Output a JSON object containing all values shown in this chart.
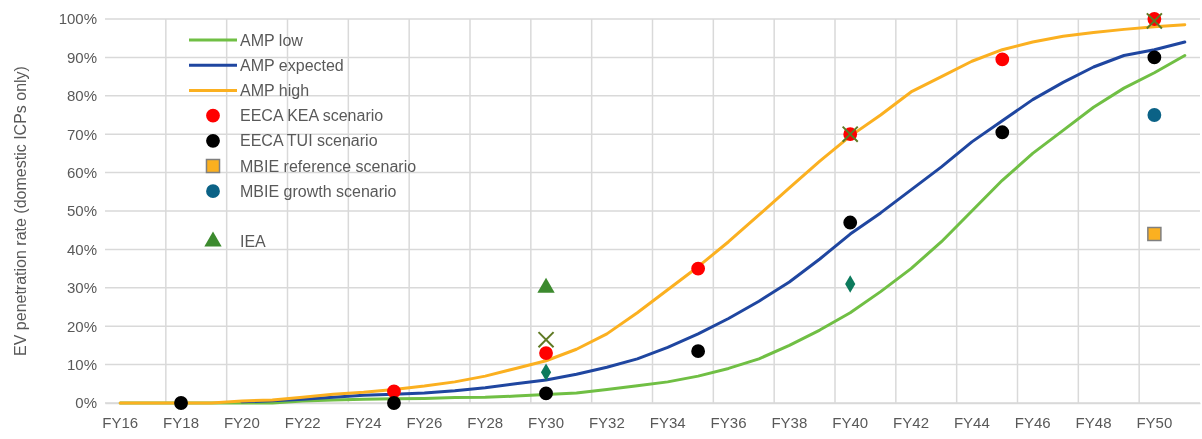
{
  "chart_data": {
    "type": "line",
    "ylabel": "EV penetration rate (domestic ICPs only)",
    "categories": [
      "FY16",
      null,
      "FY18",
      null,
      "FY20",
      null,
      "FY22",
      null,
      "FY24",
      null,
      "FY26",
      null,
      "FY28",
      null,
      "FY30",
      null,
      "FY32",
      null,
      "FY34",
      null,
      "FY36",
      null,
      "FY38",
      null,
      "FY40",
      null,
      "FY42",
      null,
      "FY44",
      null,
      "FY46",
      null,
      "FY48",
      null,
      "FY50",
      null
    ],
    "ylim": [
      0,
      100
    ],
    "yticks": [
      {
        "value": 0,
        "label": "0%"
      },
      {
        "value": 10,
        "label": "10%"
      },
      {
        "value": 20,
        "label": "20%"
      },
      {
        "value": 30,
        "label": "30%"
      },
      {
        "value": 40,
        "label": "40%"
      },
      {
        "value": 50,
        "label": "50%"
      },
      {
        "value": 60,
        "label": "60%"
      },
      {
        "value": 70,
        "label": "70%"
      },
      {
        "value": 80,
        "label": "80%"
      },
      {
        "value": 90,
        "label": "90%"
      },
      {
        "value": 100,
        "label": "100%"
      }
    ],
    "grid": true,
    "legend": "top left",
    "series": [
      {
        "name": "AMP low",
        "marker": "none",
        "color": "#70bf44",
        "values": [
          0,
          0,
          0,
          0,
          0,
          0,
          0.5,
          0.8,
          1,
          1.1,
          1.2,
          1.4,
          1.5,
          1.8,
          2.2,
          2.6,
          3.5,
          4.5,
          5.5,
          7,
          9,
          11.5,
          15,
          19,
          23.5,
          29,
          35,
          42,
          50,
          58,
          65,
          71,
          77,
          82,
          86,
          90.5
        ]
      },
      {
        "name": "AMP expected",
        "marker": "none",
        "color": "#1f46a0",
        "values": [
          null,
          null,
          null,
          null,
          0.3,
          0.6,
          1,
          1.5,
          2,
          2.3,
          2.6,
          3.2,
          4,
          5,
          6,
          7.5,
          9.3,
          11.5,
          14.5,
          18,
          22,
          26.5,
          31.5,
          37.5,
          44,
          49.5,
          55.5,
          61.5,
          68,
          73.5,
          79,
          83.5,
          87.5,
          90.5,
          92,
          94
        ]
      },
      {
        "name": "AMP high",
        "marker": "none",
        "color": "#fbb020",
        "values": [
          0,
          0,
          0,
          0,
          0.5,
          0.8,
          1.5,
          2.3,
          2.8,
          3.5,
          4.4,
          5.5,
          7,
          9,
          11,
          14,
          18,
          23.5,
          29.5,
          35.5,
          42,
          49,
          56,
          63,
          69.5,
          75,
          81,
          85,
          89,
          92,
          94,
          95.5,
          96.5,
          97.3,
          98,
          98.5
        ]
      },
      {
        "name": "EECA KEA scenario",
        "type": "scatter",
        "marker": "circle",
        "color": "#ff0000",
        "values": [
          null,
          null,
          null,
          null,
          null,
          null,
          null,
          null,
          null,
          3,
          null,
          null,
          null,
          null,
          13,
          null,
          null,
          null,
          null,
          35,
          null,
          null,
          null,
          null,
          70,
          null,
          null,
          null,
          null,
          89.5,
          null,
          null,
          null,
          null,
          100,
          null
        ]
      },
      {
        "name": "EECA TUI scenario",
        "type": "scatter",
        "marker": "circle",
        "color": "#000000",
        "values": [
          null,
          null,
          0,
          null,
          null,
          null,
          null,
          null,
          null,
          0,
          null,
          null,
          null,
          null,
          2.5,
          null,
          null,
          null,
          null,
          13.5,
          null,
          null,
          null,
          null,
          47,
          null,
          null,
          null,
          null,
          70.5,
          null,
          null,
          null,
          null,
          90,
          null
        ]
      },
      {
        "name": "MBIE reference scenario",
        "type": "scatter",
        "marker": "square",
        "color": "#fbb020",
        "values": [
          null,
          null,
          null,
          null,
          null,
          null,
          null,
          null,
          null,
          null,
          null,
          null,
          null,
          null,
          null,
          null,
          null,
          null,
          null,
          null,
          null,
          null,
          null,
          null,
          null,
          null,
          null,
          null,
          null,
          null,
          null,
          null,
          null,
          null,
          44,
          null
        ]
      },
      {
        "name": "MBIE growth scenario",
        "type": "scatter",
        "marker": "circle",
        "color": "#0b6286",
        "values": [
          null,
          null,
          null,
          null,
          null,
          null,
          null,
          null,
          null,
          null,
          null,
          null,
          null,
          null,
          null,
          null,
          null,
          null,
          null,
          null,
          null,
          null,
          null,
          null,
          null,
          null,
          null,
          null,
          null,
          null,
          null,
          null,
          null,
          null,
          75,
          null
        ]
      },
      {
        "type": "scatter",
        "marker": "diamond",
        "color": "#0c7a5c",
        "values": [
          null,
          null,
          null,
          null,
          null,
          null,
          null,
          null,
          null,
          null,
          null,
          null,
          null,
          null,
          8,
          null,
          null,
          null,
          null,
          null,
          null,
          null,
          null,
          null,
          31,
          null,
          null,
          null,
          null,
          null,
          null,
          null,
          null,
          null,
          null,
          null
        ]
      },
      {
        "name": "IEA",
        "type": "scatter",
        "marker": "triangle",
        "color": "#3c8a2e",
        "values": [
          null,
          null,
          null,
          null,
          null,
          null,
          null,
          null,
          null,
          null,
          null,
          null,
          null,
          null,
          30,
          null,
          null,
          null,
          null,
          null,
          null,
          null,
          null,
          null,
          null,
          null,
          null,
          null,
          null,
          null,
          null,
          null,
          null,
          null,
          null,
          null
        ]
      },
      {
        "type": "scatter",
        "marker": "cross",
        "color": "#5f7a24",
        "values": [
          null,
          null,
          null,
          null,
          null,
          null,
          null,
          null,
          null,
          null,
          null,
          null,
          null,
          null,
          16.5,
          null,
          null,
          null,
          null,
          null,
          null,
          null,
          null,
          null,
          70,
          null,
          null,
          null,
          null,
          null,
          null,
          null,
          null,
          null,
          99.5,
          null
        ]
      }
    ]
  }
}
